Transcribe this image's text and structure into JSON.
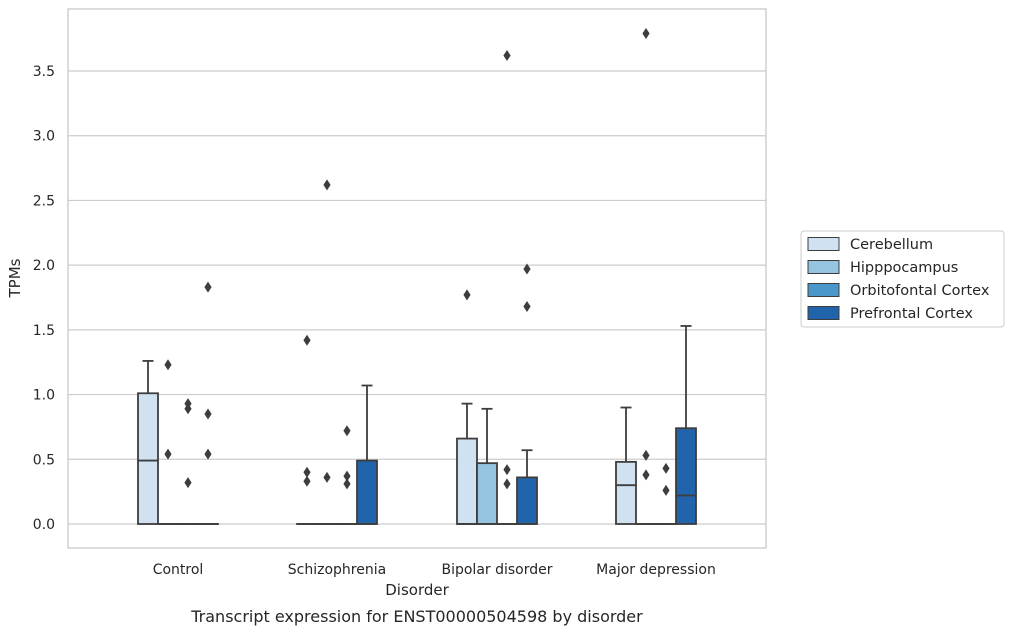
{
  "chart_data": {
    "type": "box",
    "xlabel": "Disorder",
    "ylabel": "TPMs",
    "caption": "Transcript expression for ENST00000504598 by disorder",
    "ylim": [
      -0.18,
      3.98
    ],
    "yticks": [
      "0.0",
      "0.5",
      "1.0",
      "1.5",
      "2.0",
      "2.5",
      "3.0",
      "3.5"
    ],
    "categories": [
      "Control",
      "Schizophrenia",
      "Bipolar disorder",
      "Major depression"
    ],
    "grid": "horizontal",
    "legend_position": "right",
    "series": [
      {
        "name": "Cerebellum",
        "color": "#d0e1f2"
      },
      {
        "name": "Hipppocampus",
        "color": "#94c4df"
      },
      {
        "name": "Orbitofontal Cortex",
        "color": "#4a98c9"
      },
      {
        "name": "Prefrontal Cortex",
        "color": "#2264ab"
      }
    ],
    "boxes": [
      {
        "category": 0,
        "series": 0,
        "q1": 0,
        "median": 0.49,
        "q3": 1.01,
        "whisker_low": 0,
        "whisker_high": 1.26,
        "outliers": []
      },
      {
        "category": 0,
        "series": 1,
        "q1": 0,
        "median": 0,
        "q3": 0,
        "whisker_low": 0,
        "whisker_high": 0,
        "outliers": [
          1.23,
          0.54
        ]
      },
      {
        "category": 0,
        "series": 2,
        "q1": 0,
        "median": 0,
        "q3": 0,
        "whisker_low": 0,
        "whisker_high": 0,
        "outliers": [
          0.93,
          0.89,
          0.32
        ]
      },
      {
        "category": 0,
        "series": 3,
        "q1": 0,
        "median": 0,
        "q3": 0,
        "whisker_low": 0,
        "whisker_high": 0,
        "outliers": [
          1.83,
          0.85,
          0.54
        ]
      },
      {
        "category": 1,
        "series": 0,
        "q1": 0,
        "median": 0,
        "q3": 0,
        "whisker_low": 0,
        "whisker_high": 0,
        "outliers": [
          1.42,
          0.4,
          0.33
        ]
      },
      {
        "category": 1,
        "series": 1,
        "q1": 0,
        "median": 0,
        "q3": 0,
        "whisker_low": 0,
        "whisker_high": 0,
        "outliers": [
          2.62,
          0.36
        ]
      },
      {
        "category": 1,
        "series": 2,
        "q1": 0,
        "median": 0,
        "q3": 0,
        "whisker_low": 0,
        "whisker_high": 0,
        "outliers": [
          0.72,
          0.37,
          0.31
        ]
      },
      {
        "category": 1,
        "series": 3,
        "q1": 0,
        "median": 0,
        "q3": 0.49,
        "whisker_low": 0,
        "whisker_high": 1.07,
        "outliers": []
      },
      {
        "category": 2,
        "series": 0,
        "q1": 0,
        "median": 0,
        "q3": 0.66,
        "whisker_low": 0,
        "whisker_high": 0.93,
        "outliers": [
          1.77
        ]
      },
      {
        "category": 2,
        "series": 1,
        "q1": 0,
        "median": 0,
        "q3": 0.47,
        "whisker_low": 0,
        "whisker_high": 0.89,
        "outliers": []
      },
      {
        "category": 2,
        "series": 2,
        "q1": 0,
        "median": 0,
        "q3": 0,
        "whisker_low": 0,
        "whisker_high": 0,
        "outliers": [
          3.62,
          0.42,
          0.31
        ]
      },
      {
        "category": 2,
        "series": 3,
        "q1": 0,
        "median": 0,
        "q3": 0.36,
        "whisker_low": 0,
        "whisker_high": 0.57,
        "outliers": [
          1.97,
          1.68
        ]
      },
      {
        "category": 3,
        "series": 0,
        "q1": 0,
        "median": 0.3,
        "q3": 0.48,
        "whisker_low": 0,
        "whisker_high": 0.9,
        "outliers": []
      },
      {
        "category": 3,
        "series": 1,
        "q1": 0,
        "median": 0,
        "q3": 0,
        "whisker_low": 0,
        "whisker_high": 0,
        "outliers": [
          3.79,
          0.53,
          0.38
        ]
      },
      {
        "category": 3,
        "series": 2,
        "q1": 0,
        "median": 0,
        "q3": 0,
        "whisker_low": 0,
        "whisker_high": 0,
        "outliers": [
          0.43,
          0.26
        ]
      },
      {
        "category": 3,
        "series": 3,
        "q1": 0,
        "median": 0.22,
        "q3": 0.74,
        "whisker_low": 0,
        "whisker_high": 1.53,
        "outliers": []
      }
    ]
  }
}
